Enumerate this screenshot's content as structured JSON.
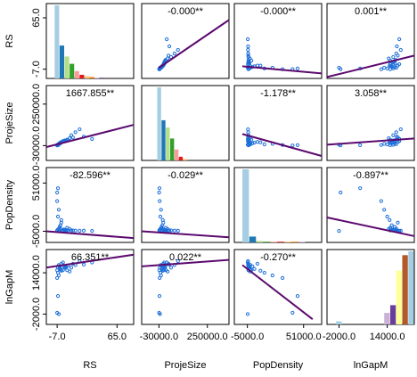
{
  "chart_data": {
    "type": "scatter_matrix",
    "point_color": "#1e6fd9",
    "line_color": "#5b0a6e",
    "hist_palette": [
      "#a6cee3",
      "#1f78b4",
      "#b2df8a",
      "#33a02c",
      "#fb9a99",
      "#e31a1c",
      "#fdbf6f",
      "#ff7f00",
      "#cab2d6",
      "#6a3d9a",
      "#ffff99",
      "#b15928"
    ],
    "variables": [
      {
        "name": "RS",
        "lim": [
          -20,
          85
        ],
        "ticks": [
          {
            "value": -7,
            "label": "-7.0"
          },
          {
            "value": 65,
            "label": "65.0"
          }
        ],
        "values": [
          -7,
          -6,
          -5,
          -4,
          -3,
          -2,
          0,
          2,
          5,
          8,
          10,
          15,
          20,
          -6,
          -5,
          -7,
          -4,
          3,
          -2,
          1,
          25,
          35,
          -6,
          -5,
          0,
          6,
          12,
          -7,
          -3,
          4
        ],
        "hist": {
          "bins": [
            -10,
            -4,
            2,
            8,
            14,
            20,
            26,
            32,
            38,
            44,
            50
          ],
          "counts": [
            100,
            45,
            30,
            20,
            10,
            5,
            3,
            2,
            1,
            1
          ]
        }
      },
      {
        "name": "ProjeSize",
        "lim": [
          -130000,
          375000
        ],
        "ticks": [
          {
            "value": -30000,
            "label": "-30000.0"
          },
          {
            "value": 250000,
            "label": "250000.0"
          }
        ],
        "values": [
          -28000,
          -25000,
          -20000,
          -15000,
          -10000,
          -5000,
          0,
          5000,
          10000,
          20000,
          40000,
          60000,
          80000,
          -22000,
          -18000,
          -26000,
          -12000,
          2000,
          -8000,
          -3000,
          30000,
          15000,
          -27000,
          -24000,
          -1000,
          8000,
          25000,
          -29000,
          -14000,
          3000
        ],
        "hist": {
          "bins": [
            -40000,
            -15000,
            10000,
            35000,
            60000,
            85000,
            110000,
            135000
          ],
          "counts": [
            100,
            55,
            45,
            30,
            15,
            5,
            2
          ]
        }
      },
      {
        "name": "PopDensity",
        "lim": [
          -18000,
          69000
        ],
        "ticks": [
          {
            "value": -5000,
            "label": "-5000.0"
          },
          {
            "value": 51000,
            "label": "51000.0"
          }
        ],
        "values": [
          -4000,
          -3000,
          -2000,
          0,
          2000,
          5000,
          -4500,
          -3500,
          -1000,
          -2500,
          -4000,
          -4200,
          -4400,
          12000,
          20000,
          30000,
          -3800,
          -4100,
          8000,
          -3000,
          -4300,
          -4600,
          45000,
          -4700,
          -4000,
          -3900,
          -4100,
          40000,
          -2000,
          -3600
        ],
        "hist": {
          "bins": [
            -10000,
            -3000,
            4000,
            11000,
            18000,
            25000,
            32000,
            39000,
            46000,
            53000
          ],
          "counts": [
            100,
            8,
            2,
            1,
            1,
            1,
            1,
            1,
            1
          ]
        }
      },
      {
        "name": "lnGapM",
        "lim": [
          -6000,
          23000
        ],
        "ticks": [
          {
            "value": -2000,
            "label": "-2000.0"
          },
          {
            "value": 14000,
            "label": "14000.0"
          }
        ],
        "values": [
          15000,
          16000,
          17000,
          16500,
          15500,
          17500,
          18000,
          16000,
          15000,
          14500,
          16000,
          17000,
          18500,
          14000,
          13000,
          12000,
          15800,
          16200,
          14800,
          16600,
          17200,
          18000,
          5000,
          -2000,
          15000,
          16800,
          17500,
          -1500,
          15200,
          16300
        ],
        "hist": {
          "bins": [
            -3000,
            -1000,
            1000,
            3000,
            5000,
            7000,
            9000,
            11000,
            13000,
            15000,
            17000,
            19000,
            21000,
            23000
          ],
          "counts": [
            4,
            0,
            0,
            0,
            0,
            0,
            0,
            0,
            15,
            25,
            70,
            90,
            95
          ]
        }
      }
    ],
    "coefficients": [
      {
        "row": 0,
        "col": 1,
        "label": "-0.000**"
      },
      {
        "row": 0,
        "col": 2,
        "label": "-0.000**"
      },
      {
        "row": 0,
        "col": 3,
        "label": "0.001**"
      },
      {
        "row": 1,
        "col": 0,
        "label": "1667.855**"
      },
      {
        "row": 1,
        "col": 2,
        "label": "-1.178**"
      },
      {
        "row": 1,
        "col": 3,
        "label": "3.058**"
      },
      {
        "row": 2,
        "col": 0,
        "label": "-82.596**"
      },
      {
        "row": 2,
        "col": 1,
        "label": "-0.029**"
      },
      {
        "row": 2,
        "col": 3,
        "label": "-0.897**"
      },
      {
        "row": 3,
        "col": 0,
        "label": "66.351**"
      },
      {
        "row": 3,
        "col": 1,
        "label": "0.022**"
      },
      {
        "row": 3,
        "col": 2,
        "label": "-0.270**"
      }
    ],
    "fit_lines": [
      {
        "row": 0,
        "col": 1,
        "x": [
          -30000,
          375000
        ],
        "y": [
          -5,
          62
        ]
      },
      {
        "row": 0,
        "col": 2,
        "x": [
          -10000,
          69000
        ],
        "y": [
          -3,
          -13
        ]
      },
      {
        "row": 0,
        "col": 3,
        "x": [
          -6000,
          23000
        ],
        "y": [
          -18,
          12
        ]
      },
      {
        "row": 1,
        "col": 0,
        "x": [
          -20,
          85
        ],
        "y": [
          -40000,
          110000
        ]
      },
      {
        "row": 1,
        "col": 2,
        "x": [
          -10000,
          69000
        ],
        "y": [
          48000,
          -100000
        ]
      },
      {
        "row": 1,
        "col": 3,
        "x": [
          -6000,
          23000
        ],
        "y": [
          -24000,
          18000
        ]
      },
      {
        "row": 2,
        "col": 0,
        "x": [
          -20,
          85
        ],
        "y": [
          -5000,
          -13000
        ]
      },
      {
        "row": 2,
        "col": 1,
        "x": [
          -130000,
          375000
        ],
        "y": [
          -5000,
          -12000
        ]
      },
      {
        "row": 2,
        "col": 3,
        "x": [
          -6000,
          23000
        ],
        "y": [
          11000,
          -10700
        ]
      },
      {
        "row": 3,
        "col": 0,
        "x": [
          -20,
          85
        ],
        "y": [
          16000,
          21000
        ]
      },
      {
        "row": 3,
        "col": 1,
        "x": [
          -130000,
          375000
        ],
        "y": [
          16500,
          19000
        ]
      },
      {
        "row": 3,
        "col": 2,
        "x": [
          -10000,
          60000
        ],
        "y": [
          17000,
          -4000
        ]
      }
    ]
  }
}
